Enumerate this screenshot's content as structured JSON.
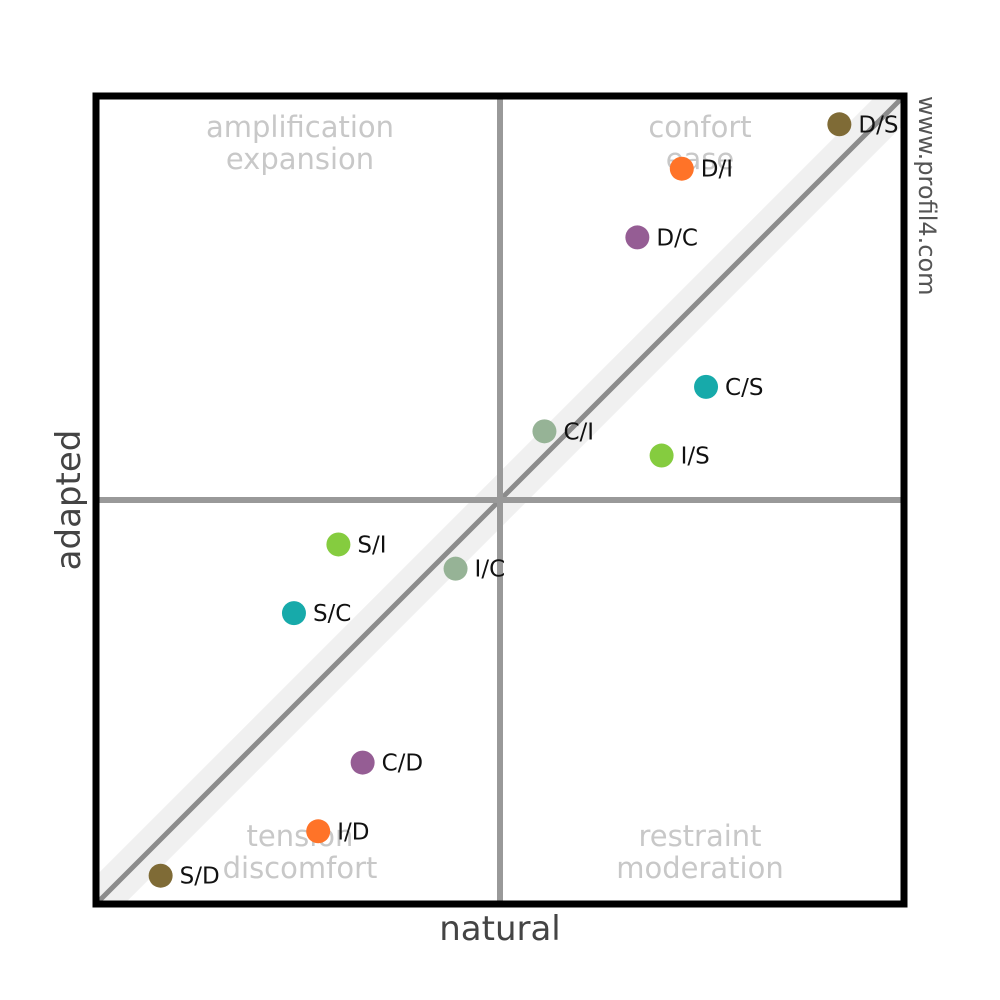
{
  "chart_data": {
    "type": "scatter",
    "xlabel": "natural",
    "ylabel": "adapted",
    "xlim": [
      -100,
      100
    ],
    "ylim": [
      -100,
      100
    ],
    "diagonal_band_halfwidth": 7,
    "quadrant_labels": {
      "top_left": [
        "amplification",
        "expansion"
      ],
      "top_right": [
        "confort",
        "ease"
      ],
      "bottom_left": [
        "tension",
        "discomfort"
      ],
      "bottom_right": [
        "restraint",
        "moderation"
      ]
    },
    "watermark": "www.profil4.com",
    "points": [
      {
        "label": "D/S",
        "x": 84,
        "y": 93,
        "color": "#7f6b36"
      },
      {
        "label": "D/I",
        "x": 45,
        "y": 82,
        "color": "#ff7328"
      },
      {
        "label": "D/C",
        "x": 34,
        "y": 65,
        "color": "#955d94"
      },
      {
        "label": "C/S",
        "x": 51,
        "y": 28,
        "color": "#17aaaa"
      },
      {
        "label": "C/I",
        "x": 11,
        "y": 17,
        "color": "#96b396"
      },
      {
        "label": "I/S",
        "x": 40,
        "y": 11,
        "color": "#85cc3f"
      },
      {
        "label": "S/I",
        "x": -40,
        "y": -11,
        "color": "#85cc3f"
      },
      {
        "label": "I/C",
        "x": -11,
        "y": -17,
        "color": "#96b396"
      },
      {
        "label": "S/C",
        "x": -51,
        "y": -28,
        "color": "#17aaaa"
      },
      {
        "label": "C/D",
        "x": -34,
        "y": -65,
        "color": "#955d94"
      },
      {
        "label": "I/D",
        "x": -45,
        "y": -82,
        "color": "#ff7328"
      },
      {
        "label": "S/D",
        "x": -84,
        "y": -93,
        "color": "#7f6b36"
      }
    ]
  }
}
